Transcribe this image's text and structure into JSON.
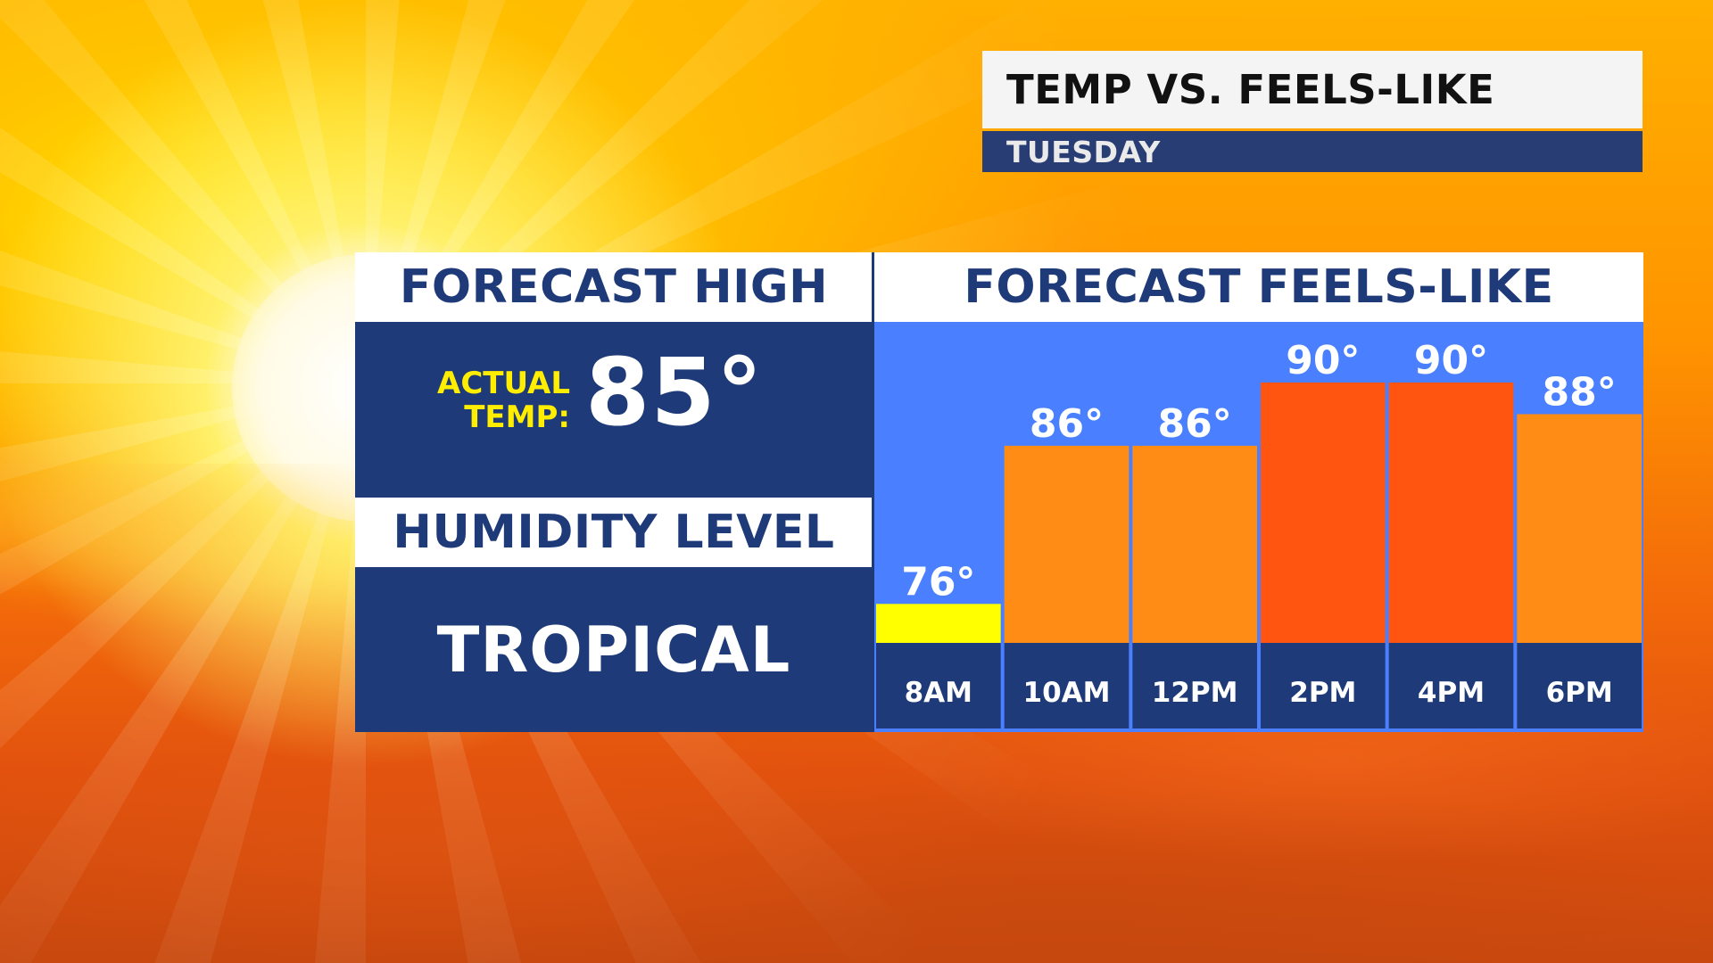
{
  "header": {
    "title": "TEMP VS. FEELS-LIKE",
    "subtitle": "TUESDAY"
  },
  "left_panel": {
    "heading": "FORECAST HIGH",
    "actual_label": "ACTUAL TEMP:",
    "actual_value": "85°",
    "humidity_heading": "HUMIDITY LEVEL",
    "humidity_value": "TROPICAL"
  },
  "right_panel": {
    "heading": "FORECAST FEELS-LIKE"
  },
  "colors": {
    "panel_navy": "#1e3a78",
    "chart_background": "#4a80ff",
    "bar_yellow": "#ffff00",
    "bar_orange": "#ff8c14",
    "bar_red_orange": "#ff5510",
    "label_yellow": "#ffee00"
  },
  "chart_data": {
    "type": "bar",
    "title": "FORECAST FEELS-LIKE",
    "categories": [
      "8AM",
      "10AM",
      "12PM",
      "2PM",
      "4PM",
      "6PM"
    ],
    "values": [
      76,
      86,
      86,
      90,
      90,
      88
    ],
    "value_labels": [
      "76°",
      "86°",
      "86°",
      "90°",
      "90°",
      "88°"
    ],
    "bar_colors": [
      "#ffff00",
      "#ff8c14",
      "#ff8c14",
      "#ff5510",
      "#ff5510",
      "#ff8c14"
    ],
    "ylim": [
      75,
      90
    ],
    "grid": false,
    "xlabel": "",
    "ylabel": ""
  }
}
